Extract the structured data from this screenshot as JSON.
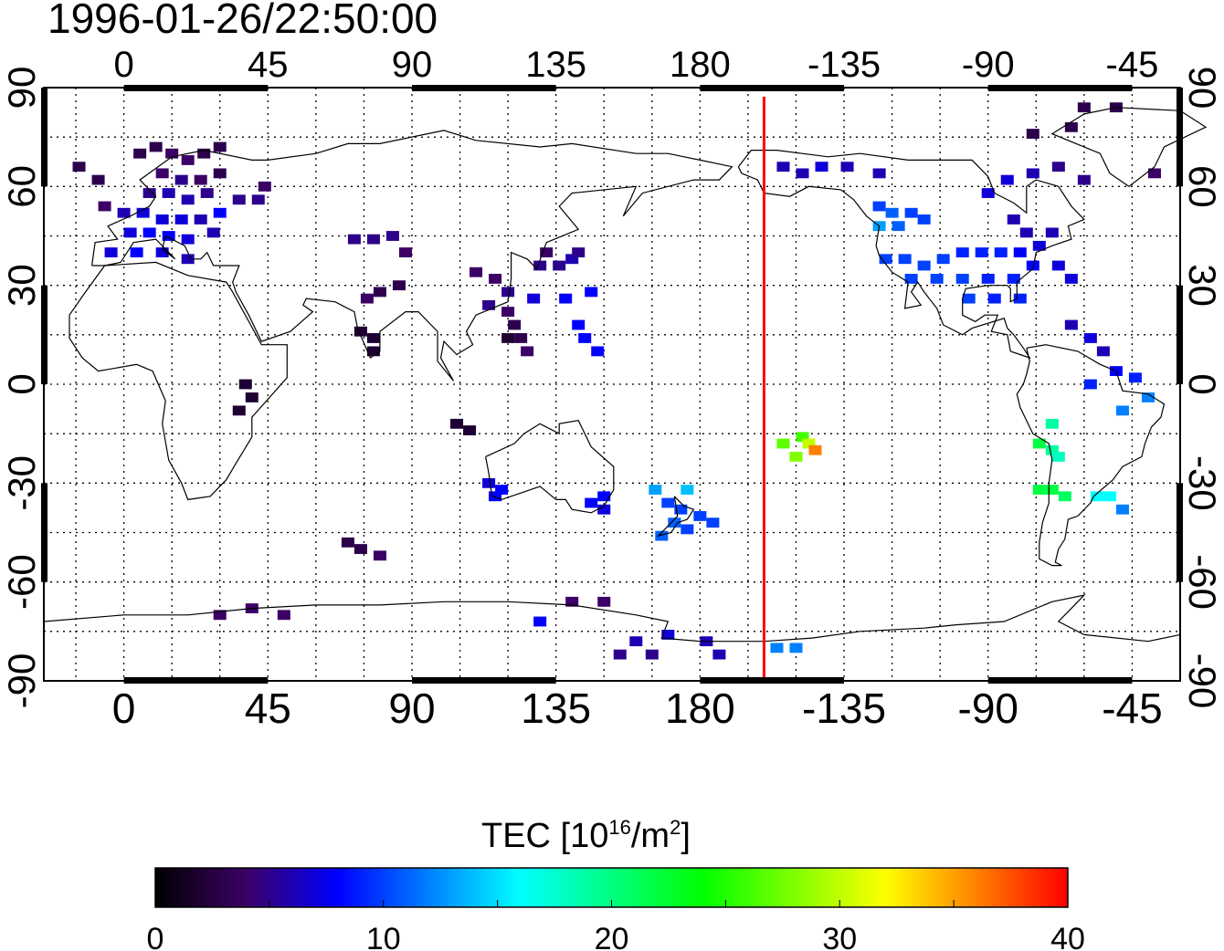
{
  "timestamp": "1996-01-26/22:50:00",
  "map": {
    "lon_ticks": [
      "0",
      "45",
      "90",
      "135",
      "180",
      "-135",
      "-90",
      "-45"
    ],
    "lon_values": [
      0,
      45,
      90,
      135,
      180,
      225,
      270,
      315
    ],
    "lat_ticks": [
      "90",
      "60",
      "30",
      "0",
      "-30",
      "-60",
      "-90"
    ],
    "lat_values": [
      90,
      60,
      30,
      0,
      -30,
      -60,
      -90
    ],
    "lon_range": [
      -25,
      330
    ],
    "lat_range": [
      -90,
      90
    ],
    "grid_step_deg": 15,
    "grid": "dotted",
    "coastline_color": "#000000",
    "marker_line_lon": 200,
    "marker_line_color": "#ff0000"
  },
  "colorbar": {
    "title_main": "TEC  [10",
    "title_exp": "16",
    "title_unit": "/m",
    "title_exp2": "2",
    "title_end": "]",
    "min": 0,
    "max": 40,
    "tick_labels": [
      "0",
      "10",
      "20",
      "30",
      "40"
    ],
    "tick_values": [
      0,
      10,
      20,
      30,
      40
    ],
    "colors": [
      "#000000",
      "#3c0066",
      "#0000ff",
      "#0080ff",
      "#00ffff",
      "#00ff80",
      "#00ff00",
      "#80ff00",
      "#ffff00",
      "#ff8000",
      "#ff0000"
    ]
  },
  "chart_data": {
    "type": "heatmap",
    "units": "TEC [10^16/m^2]",
    "cells": [
      {
        "lon": 5,
        "lat": 70,
        "v": 3
      },
      {
        "lon": 10,
        "lat": 72,
        "v": 3
      },
      {
        "lon": 15,
        "lat": 70,
        "v": 4
      },
      {
        "lon": 20,
        "lat": 68,
        "v": 4
      },
      {
        "lon": 25,
        "lat": 70,
        "v": 3
      },
      {
        "lon": 30,
        "lat": 72,
        "v": 3
      },
      {
        "lon": 12,
        "lat": 64,
        "v": 4
      },
      {
        "lon": 18,
        "lat": 62,
        "v": 5
      },
      {
        "lon": 24,
        "lat": 62,
        "v": 4
      },
      {
        "lon": 30,
        "lat": 64,
        "v": 3
      },
      {
        "lon": 8,
        "lat": 58,
        "v": 5
      },
      {
        "lon": 14,
        "lat": 58,
        "v": 6
      },
      {
        "lon": 20,
        "lat": 56,
        "v": 6
      },
      {
        "lon": 26,
        "lat": 58,
        "v": 5
      },
      {
        "lon": 0,
        "lat": 52,
        "v": 6
      },
      {
        "lon": 6,
        "lat": 52,
        "v": 7
      },
      {
        "lon": 12,
        "lat": 50,
        "v": 7
      },
      {
        "lon": 18,
        "lat": 50,
        "v": 7
      },
      {
        "lon": 24,
        "lat": 50,
        "v": 6
      },
      {
        "lon": 2,
        "lat": 46,
        "v": 7
      },
      {
        "lon": 8,
        "lat": 46,
        "v": 8
      },
      {
        "lon": 14,
        "lat": 45,
        "v": 8
      },
      {
        "lon": 20,
        "lat": 44,
        "v": 7
      },
      {
        "lon": -4,
        "lat": 40,
        "v": 7
      },
      {
        "lon": 4,
        "lat": 40,
        "v": 8
      },
      {
        "lon": 12,
        "lat": 40,
        "v": 7
      },
      {
        "lon": 20,
        "lat": 38,
        "v": 6
      },
      {
        "lon": -14,
        "lat": 66,
        "v": 3
      },
      {
        "lon": -8,
        "lat": 62,
        "v": 3
      },
      {
        "lon": -6,
        "lat": 54,
        "v": 4
      },
      {
        "lon": 36,
        "lat": 56,
        "v": 5
      },
      {
        "lon": 42,
        "lat": 56,
        "v": 5
      },
      {
        "lon": 44,
        "lat": 60,
        "v": 4
      },
      {
        "lon": 30,
        "lat": 52,
        "v": 8
      },
      {
        "lon": 28,
        "lat": 46,
        "v": 6
      },
      {
        "lon": 72,
        "lat": 44,
        "v": 5
      },
      {
        "lon": 78,
        "lat": 44,
        "v": 5
      },
      {
        "lon": 84,
        "lat": 45,
        "v": 5
      },
      {
        "lon": 88,
        "lat": 40,
        "v": 4
      },
      {
        "lon": 80,
        "lat": 28,
        "v": 3
      },
      {
        "lon": 86,
        "lat": 30,
        "v": 3
      },
      {
        "lon": 76,
        "lat": 26,
        "v": 4
      },
      {
        "lon": 74,
        "lat": 16,
        "v": 2
      },
      {
        "lon": 78,
        "lat": 14,
        "v": 2
      },
      {
        "lon": 78,
        "lat": 10,
        "v": 2
      },
      {
        "lon": 38,
        "lat": 0,
        "v": 2
      },
      {
        "lon": 40,
        "lat": -4,
        "v": 2
      },
      {
        "lon": 36,
        "lat": -8,
        "v": 2
      },
      {
        "lon": 110,
        "lat": 34,
        "v": 4
      },
      {
        "lon": 116,
        "lat": 32,
        "v": 4
      },
      {
        "lon": 120,
        "lat": 28,
        "v": 5
      },
      {
        "lon": 114,
        "lat": 24,
        "v": 5
      },
      {
        "lon": 120,
        "lat": 22,
        "v": 4
      },
      {
        "lon": 122,
        "lat": 18,
        "v": 3
      },
      {
        "lon": 124,
        "lat": 14,
        "v": 3
      },
      {
        "lon": 120,
        "lat": 14,
        "v": 2
      },
      {
        "lon": 126,
        "lat": 10,
        "v": 4
      },
      {
        "lon": 130,
        "lat": 36,
        "v": 5
      },
      {
        "lon": 136,
        "lat": 36,
        "v": 5
      },
      {
        "lon": 140,
        "lat": 38,
        "v": 6
      },
      {
        "lon": 132,
        "lat": 40,
        "v": 4
      },
      {
        "lon": 142,
        "lat": 40,
        "v": 5
      },
      {
        "lon": 128,
        "lat": 26,
        "v": 7
      },
      {
        "lon": 138,
        "lat": 26,
        "v": 8
      },
      {
        "lon": 146,
        "lat": 28,
        "v": 8
      },
      {
        "lon": 144,
        "lat": 14,
        "v": 8
      },
      {
        "lon": 142,
        "lat": 18,
        "v": 8
      },
      {
        "lon": 148,
        "lat": 10,
        "v": 8
      },
      {
        "lon": 104,
        "lat": -12,
        "v": 2
      },
      {
        "lon": 108,
        "lat": -14,
        "v": 2
      },
      {
        "lon": 114,
        "lat": -30,
        "v": 7
      },
      {
        "lon": 118,
        "lat": -32,
        "v": 8
      },
      {
        "lon": 116,
        "lat": -34,
        "v": 8
      },
      {
        "lon": 146,
        "lat": -36,
        "v": 8
      },
      {
        "lon": 150,
        "lat": -34,
        "v": 8
      },
      {
        "lon": 150,
        "lat": -38,
        "v": 7
      },
      {
        "lon": 170,
        "lat": -36,
        "v": 10
      },
      {
        "lon": 174,
        "lat": -38,
        "v": 10
      },
      {
        "lon": 172,
        "lat": -42,
        "v": 11
      },
      {
        "lon": 176,
        "lat": -44,
        "v": 10
      },
      {
        "lon": 168,
        "lat": -46,
        "v": 11
      },
      {
        "lon": 180,
        "lat": -40,
        "v": 10
      },
      {
        "lon": 184,
        "lat": -42,
        "v": 10
      },
      {
        "lon": 166,
        "lat": -32,
        "v": 13
      },
      {
        "lon": 176,
        "lat": -32,
        "v": 14
      },
      {
        "lon": 212,
        "lat": -16,
        "v": 26
      },
      {
        "lon": 214,
        "lat": -18,
        "v": 30
      },
      {
        "lon": 216,
        "lat": -20,
        "v": 36
      },
      {
        "lon": 210,
        "lat": -22,
        "v": 28
      },
      {
        "lon": 206,
        "lat": -18,
        "v": 27
      },
      {
        "lon": 206,
        "lat": 66,
        "v": 6
      },
      {
        "lon": 212,
        "lat": 64,
        "v": 6
      },
      {
        "lon": 218,
        "lat": 66,
        "v": 7
      },
      {
        "lon": 226,
        "lat": 66,
        "v": 6
      },
      {
        "lon": 236,
        "lat": 64,
        "v": 6
      },
      {
        "lon": 236,
        "lat": 54,
        "v": 10
      },
      {
        "lon": 240,
        "lat": 52,
        "v": 11
      },
      {
        "lon": 246,
        "lat": 52,
        "v": 10
      },
      {
        "lon": 236,
        "lat": 48,
        "v": 13
      },
      {
        "lon": 242,
        "lat": 48,
        "v": 11
      },
      {
        "lon": 250,
        "lat": 50,
        "v": 10
      },
      {
        "lon": 238,
        "lat": 38,
        "v": 10
      },
      {
        "lon": 244,
        "lat": 38,
        "v": 10
      },
      {
        "lon": 250,
        "lat": 36,
        "v": 10
      },
      {
        "lon": 256,
        "lat": 38,
        "v": 10
      },
      {
        "lon": 262,
        "lat": 40,
        "v": 9
      },
      {
        "lon": 268,
        "lat": 40,
        "v": 9
      },
      {
        "lon": 274,
        "lat": 40,
        "v": 9
      },
      {
        "lon": 280,
        "lat": 40,
        "v": 8
      },
      {
        "lon": 286,
        "lat": 42,
        "v": 7
      },
      {
        "lon": 246,
        "lat": 32,
        "v": 10
      },
      {
        "lon": 254,
        "lat": 32,
        "v": 10
      },
      {
        "lon": 262,
        "lat": 32,
        "v": 10
      },
      {
        "lon": 270,
        "lat": 32,
        "v": 9
      },
      {
        "lon": 278,
        "lat": 32,
        "v": 9
      },
      {
        "lon": 284,
        "lat": 36,
        "v": 8
      },
      {
        "lon": 264,
        "lat": 26,
        "v": 10
      },
      {
        "lon": 272,
        "lat": 26,
        "v": 9
      },
      {
        "lon": 280,
        "lat": 26,
        "v": 9
      },
      {
        "lon": 282,
        "lat": 46,
        "v": 6
      },
      {
        "lon": 290,
        "lat": 46,
        "v": 6
      },
      {
        "lon": 278,
        "lat": 50,
        "v": 6
      },
      {
        "lon": 292,
        "lat": 36,
        "v": 7
      },
      {
        "lon": 296,
        "lat": 32,
        "v": 7
      },
      {
        "lon": 270,
        "lat": 58,
        "v": 7
      },
      {
        "lon": 276,
        "lat": 62,
        "v": 7
      },
      {
        "lon": 284,
        "lat": 64,
        "v": 6
      },
      {
        "lon": 292,
        "lat": 66,
        "v": 5
      },
      {
        "lon": 300,
        "lat": 62,
        "v": 5
      },
      {
        "lon": 284,
        "lat": 76,
        "v": 3
      },
      {
        "lon": 296,
        "lat": 78,
        "v": 3
      },
      {
        "lon": 300,
        "lat": 84,
        "v": 3
      },
      {
        "lon": 310,
        "lat": 84,
        "v": 3
      },
      {
        "lon": 322,
        "lat": 64,
        "v": 4
      },
      {
        "lon": 296,
        "lat": 18,
        "v": 6
      },
      {
        "lon": 302,
        "lat": 14,
        "v": 7
      },
      {
        "lon": 306,
        "lat": 10,
        "v": 6
      },
      {
        "lon": 310,
        "lat": 4,
        "v": 8
      },
      {
        "lon": 316,
        "lat": 2,
        "v": 9
      },
      {
        "lon": 320,
        "lat": -4,
        "v": 12
      },
      {
        "lon": 312,
        "lat": -8,
        "v": 12
      },
      {
        "lon": 302,
        "lat": 0,
        "v": 9
      },
      {
        "lon": 290,
        "lat": -12,
        "v": 19
      },
      {
        "lon": 286,
        "lat": -18,
        "v": 22
      },
      {
        "lon": 290,
        "lat": -20,
        "v": 19
      },
      {
        "lon": 292,
        "lat": -22,
        "v": 18
      },
      {
        "lon": 286,
        "lat": -32,
        "v": 22
      },
      {
        "lon": 290,
        "lat": -32,
        "v": 22
      },
      {
        "lon": 294,
        "lat": -34,
        "v": 21
      },
      {
        "lon": 304,
        "lat": -34,
        "v": 16
      },
      {
        "lon": 308,
        "lat": -34,
        "v": 16
      },
      {
        "lon": 312,
        "lat": -38,
        "v": 12
      },
      {
        "lon": 70,
        "lat": -48,
        "v": 3
      },
      {
        "lon": 74,
        "lat": -50,
        "v": 3
      },
      {
        "lon": 80,
        "lat": -52,
        "v": 4
      },
      {
        "lon": 30,
        "lat": -70,
        "v": 4
      },
      {
        "lon": 40,
        "lat": -68,
        "v": 4
      },
      {
        "lon": 50,
        "lat": -70,
        "v": 4
      },
      {
        "lon": 140,
        "lat": -66,
        "v": 4
      },
      {
        "lon": 150,
        "lat": -66,
        "v": 4
      },
      {
        "lon": 130,
        "lat": -72,
        "v": 8
      },
      {
        "lon": 160,
        "lat": -78,
        "v": 6
      },
      {
        "lon": 170,
        "lat": -76,
        "v": 7
      },
      {
        "lon": 182,
        "lat": -78,
        "v": 6
      },
      {
        "lon": 155,
        "lat": -82,
        "v": 5
      },
      {
        "lon": 165,
        "lat": -82,
        "v": 5
      },
      {
        "lon": 186,
        "lat": -82,
        "v": 6
      },
      {
        "lon": 204,
        "lat": -80,
        "v": 12
      },
      {
        "lon": 210,
        "lat": -80,
        "v": 12
      }
    ]
  }
}
